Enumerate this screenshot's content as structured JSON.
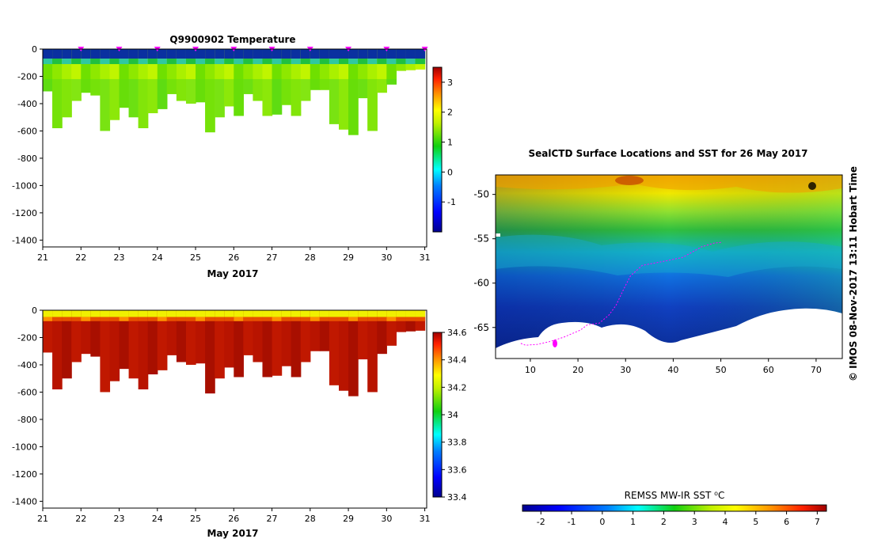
{
  "colors": {
    "jet": [
      "#00008f",
      "#0000ff",
      "#0080ff",
      "#00ffff",
      "#80ff80",
      "#ffff00",
      "#ff8000",
      "#ff0000",
      "#800000"
    ],
    "profile_ocean_temp": [
      "#6fe000",
      "#8ee800",
      "#aaf000",
      "#c0f500"
    ],
    "profile_ocean_sal": [
      "#c01800",
      "#b81400",
      "#a80f00"
    ],
    "track": "#ff00ff",
    "land": "#ffffff"
  },
  "chart_data": [
    {
      "type": "heatmap",
      "title": "Q9900902  Temperature",
      "xlabel": "May 2017",
      "ylabel": "",
      "xlim": [
        21,
        31.05
      ],
      "ylim": [
        -1450,
        0
      ],
      "xticks": [
        "21",
        "22",
        "23",
        "24",
        "25",
        "26",
        "27",
        "28",
        "29",
        "30",
        "31"
      ],
      "yticks": [
        "0",
        "-200",
        "-400",
        "-600",
        "-800",
        "-1000",
        "-1200",
        "-1400"
      ],
      "colorbar": {
        "range": [
          -2,
          3.5
        ],
        "ticks": [
          "-1",
          "0",
          "1",
          "2",
          "3"
        ]
      },
      "surface_markers_day": [
        22,
        23,
        24,
        25,
        26,
        27,
        28,
        29,
        30,
        31
      ],
      "profile_day": [
        21.0,
        21.25,
        21.5,
        21.75,
        22.0,
        22.25,
        22.5,
        22.75,
        23.0,
        23.25,
        23.5,
        23.75,
        24.0,
        24.25,
        24.5,
        24.75,
        25.0,
        25.25,
        25.5,
        25.75,
        26.0,
        26.25,
        26.5,
        26.75,
        27.0,
        27.25,
        27.5,
        27.75,
        28.0,
        28.25,
        28.5,
        28.75,
        29.0,
        29.25,
        29.5,
        29.75,
        30.0,
        30.25,
        30.5,
        30.75
      ],
      "profile_max_depth": [
        310,
        580,
        500,
        380,
        320,
        340,
        600,
        520,
        430,
        500,
        580,
        470,
        440,
        330,
        380,
        400,
        390,
        610,
        500,
        420,
        490,
        330,
        380,
        490,
        480,
        410,
        490,
        380,
        300,
        300,
        550,
        590,
        630,
        360,
        600,
        320,
        260,
        160,
        155,
        150
      ]
    },
    {
      "type": "heatmap",
      "title": "",
      "xlabel": "May 2017",
      "ylabel": "",
      "xlim": [
        21,
        31.05
      ],
      "ylim": [
        -1450,
        0
      ],
      "xticks": [
        "21",
        "22",
        "23",
        "24",
        "25",
        "26",
        "27",
        "28",
        "29",
        "30",
        "31"
      ],
      "yticks": [
        "0",
        "-200",
        "-400",
        "-600",
        "-800",
        "-1000",
        "-1200",
        "-1400"
      ],
      "colorbar": {
        "range": [
          33.4,
          34.6
        ],
        "ticks": [
          "33.4",
          "33.6",
          "33.8",
          "34",
          "34.2",
          "34.4",
          "34.6"
        ]
      },
      "profile_day": [
        21.0,
        21.25,
        21.5,
        21.75,
        22.0,
        22.25,
        22.5,
        22.75,
        23.0,
        23.25,
        23.5,
        23.75,
        24.0,
        24.25,
        24.5,
        24.75,
        25.0,
        25.25,
        25.5,
        25.75,
        26.0,
        26.25,
        26.5,
        26.75,
        27.0,
        27.25,
        27.5,
        27.75,
        28.0,
        28.25,
        28.5,
        28.75,
        29.0,
        29.25,
        29.5,
        29.75,
        30.0,
        30.25,
        30.5,
        30.75
      ],
      "profile_max_depth": [
        310,
        580,
        500,
        380,
        320,
        340,
        600,
        520,
        430,
        500,
        580,
        470,
        440,
        330,
        380,
        400,
        390,
        610,
        500,
        420,
        490,
        330,
        380,
        490,
        480,
        410,
        490,
        380,
        300,
        300,
        550,
        590,
        630,
        360,
        600,
        320,
        260,
        160,
        155,
        150
      ]
    },
    {
      "type": "heatmap",
      "title": "SealCTD Surface Locations and SST for 26 May 2017",
      "xlabel": "",
      "ylabel": "",
      "xlim": [
        2.7,
        75.5
      ],
      "ylim": [
        -68.5,
        -47.8
      ],
      "xticks": [
        "10",
        "20",
        "30",
        "40",
        "50",
        "60",
        "70"
      ],
      "yticks": [
        "-50",
        "-55",
        "-60",
        "-65"
      ],
      "side_label": "© IMOS 08-Nov-2017 13:11 Hobart Time",
      "colorbar": {
        "label": "REMSS MW-IR SST ⁰C",
        "range": [
          -2.6,
          7.3
        ],
        "ticks": [
          "-2",
          "-1",
          "0",
          "1",
          "2",
          "3",
          "4",
          "5",
          "6",
          "7"
        ]
      },
      "track_lon_lat": [
        [
          8.0,
          -66.8
        ],
        [
          9.0,
          -67.0
        ],
        [
          11.5,
          -66.9
        ],
        [
          14.0,
          -66.6
        ],
        [
          17.0,
          -66.1
        ],
        [
          20.5,
          -65.3
        ],
        [
          22.0,
          -64.7
        ],
        [
          24.5,
          -64.5
        ],
        [
          26.5,
          -63.6
        ],
        [
          28.0,
          -62.5
        ],
        [
          29.5,
          -60.8
        ],
        [
          31.0,
          -59.2
        ],
        [
          33.5,
          -58.0
        ],
        [
          37.5,
          -57.6
        ],
        [
          42.0,
          -57.1
        ],
        [
          46.0,
          -55.9
        ],
        [
          48.5,
          -55.5
        ],
        [
          50.0,
          -55.4
        ]
      ]
    }
  ]
}
